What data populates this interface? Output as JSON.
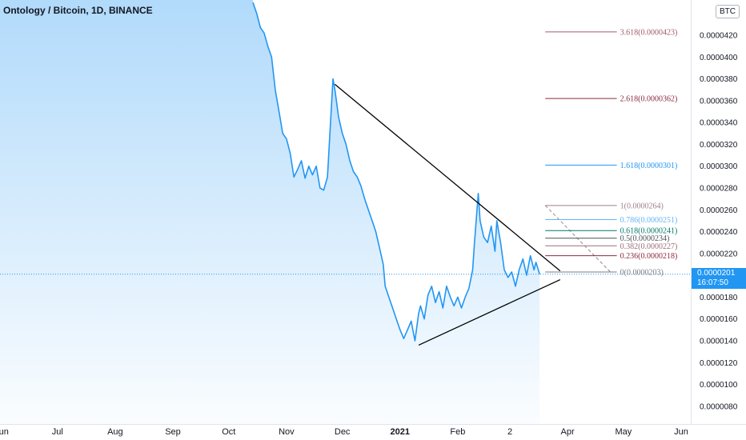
{
  "header": {
    "title": "Ontology / Bitcoin, 1D, BINANCE",
    "currency_badge": "BTC"
  },
  "current_price": {
    "value": "0.0000201",
    "countdown": "16:07:50",
    "color": "#2196f3"
  },
  "chart_data": {
    "type": "line",
    "title": "Ontology / Bitcoin, 1D, BINANCE",
    "x_tick_labels": [
      "Jun",
      "Jul",
      "Aug",
      "Sep",
      "Oct",
      "Nov",
      "Dec",
      "2021",
      "Feb",
      "2",
      "Apr",
      "May",
      "Jun"
    ],
    "y_tick_labels": [
      "0.0000420",
      "0.0000400",
      "0.0000380",
      "0.0000360",
      "0.0000340",
      "0.0000320",
      "0.0000300",
      "0.0000280",
      "0.0000260",
      "0.0000240",
      "0.0000220",
      "0.0000200",
      "0.0000180",
      "0.0000160",
      "0.0000140",
      "0.0000120",
      "0.0000100",
      "0.0000080"
    ],
    "y_ticks": [
      4.2e-05,
      4e-05,
      3.8e-05,
      3.6e-05,
      3.4e-05,
      3.2e-05,
      3e-05,
      2.8e-05,
      2.6e-05,
      2.4e-05,
      2.2e-05,
      2e-05,
      1.8e-05,
      1.6e-05,
      1.4e-05,
      1.2e-05,
      1e-05,
      8e-06
    ],
    "ylim": [
      7.4e-06,
      4.42e-05
    ],
    "x_day_range": [
      0,
      385
    ],
    "x_tick_days": [
      0,
      30,
      61,
      92,
      122,
      153,
      183,
      214,
      245,
      273,
      304,
      334,
      365
    ],
    "series": [
      {
        "color": "#2196f3",
        "fill": true,
        "points": [
          [
            135,
            4.5e-05
          ],
          [
            137,
            4.4e-05
          ],
          [
            139,
            4.27e-05
          ],
          [
            141,
            4.22e-05
          ],
          [
            143,
            4.1e-05
          ],
          [
            145,
            4e-05
          ],
          [
            147,
            3.7e-05
          ],
          [
            149,
            3.5e-05
          ],
          [
            151,
            3.3e-05
          ],
          [
            153,
            3.25e-05
          ],
          [
            155,
            3.12e-05
          ],
          [
            157,
            2.9e-05
          ],
          [
            159,
            2.97e-05
          ],
          [
            161,
            3.05e-05
          ],
          [
            163,
            2.89e-05
          ],
          [
            165,
            3e-05
          ],
          [
            167,
            2.92e-05
          ],
          [
            169,
            3e-05
          ],
          [
            171,
            2.8e-05
          ],
          [
            173,
            2.78e-05
          ],
          [
            175,
            2.9e-05
          ],
          [
            176,
            3.2e-05
          ],
          [
            178,
            3.8e-05
          ],
          [
            179,
            3.7e-05
          ],
          [
            181,
            3.45e-05
          ],
          [
            183,
            3.3e-05
          ],
          [
            185,
            3.2e-05
          ],
          [
            187,
            3.05e-05
          ],
          [
            189,
            2.95e-05
          ],
          [
            191,
            2.9e-05
          ],
          [
            193,
            2.82e-05
          ],
          [
            195,
            2.7e-05
          ],
          [
            197,
            2.6e-05
          ],
          [
            199,
            2.5e-05
          ],
          [
            201,
            2.4e-05
          ],
          [
            203,
            2.25e-05
          ],
          [
            205,
            2.1e-05
          ],
          [
            206,
            1.9e-05
          ],
          [
            208,
            1.8e-05
          ],
          [
            210,
            1.7e-05
          ],
          [
            212,
            1.6e-05
          ],
          [
            214,
            1.5e-05
          ],
          [
            216,
            1.42e-05
          ],
          [
            218,
            1.5e-05
          ],
          [
            220,
            1.58e-05
          ],
          [
            222,
            1.4e-05
          ],
          [
            224,
            1.65e-05
          ],
          [
            225,
            1.72e-05
          ],
          [
            227,
            1.6e-05
          ],
          [
            229,
            1.82e-05
          ],
          [
            231,
            1.9e-05
          ],
          [
            233,
            1.75e-05
          ],
          [
            235,
            1.85e-05
          ],
          [
            237,
            1.7e-05
          ],
          [
            239,
            1.9e-05
          ],
          [
            241,
            1.8e-05
          ],
          [
            243,
            1.72e-05
          ],
          [
            245,
            1.8e-05
          ],
          [
            247,
            1.7e-05
          ],
          [
            249,
            1.8e-05
          ],
          [
            251,
            1.88e-05
          ],
          [
            253,
            2.05e-05
          ],
          [
            254,
            2.3e-05
          ],
          [
            256,
            2.75e-05
          ],
          [
            257,
            2.5e-05
          ],
          [
            259,
            2.35e-05
          ],
          [
            261,
            2.3e-05
          ],
          [
            263,
            2.45e-05
          ],
          [
            265,
            2.22e-05
          ],
          [
            266,
            2.5e-05
          ],
          [
            268,
            2.3e-05
          ],
          [
            270,
            2.05e-05
          ],
          [
            272,
            1.98e-05
          ],
          [
            274,
            2.03e-05
          ],
          [
            276,
            1.9e-05
          ],
          [
            278,
            2.05e-05
          ],
          [
            280,
            2.15e-05
          ],
          [
            282,
            2e-05
          ],
          [
            284,
            2.18e-05
          ],
          [
            286,
            2.05e-05
          ],
          [
            287,
            2.12e-05
          ],
          [
            289,
            2.01e-05
          ]
        ]
      }
    ],
    "trendlines": [
      {
        "from": [
          179,
          3.75e-05
        ],
        "to": [
          300,
          2.04e-05
        ]
      },
      {
        "from": [
          224,
          1.36e-05
        ],
        "to": [
          300,
          1.96e-05
        ]
      }
    ],
    "fibonacci": {
      "levels": [
        {
          "ratio": "3.618",
          "value": 4.23e-05,
          "label": "3.618(0.0000423)",
          "color": "#a05a66"
        },
        {
          "ratio": "2.618",
          "value": 3.62e-05,
          "label": "2.618(0.0000362)",
          "color": "#8b2b3b"
        },
        {
          "ratio": "1.618",
          "value": 3.01e-05,
          "label": "1.618(0.0000301)",
          "color": "#2196f3"
        },
        {
          "ratio": "1",
          "value": 2.64e-05,
          "label": "1(0.0000264)",
          "color": "#9e7f88"
        },
        {
          "ratio": "0.786",
          "value": 2.51e-05,
          "label": "0.786(0.0000251)",
          "color": "#64b5f6"
        },
        {
          "ratio": "0.618",
          "value": 2.41e-05,
          "label": "0.618(0.0000241)",
          "color": "#00796b"
        },
        {
          "ratio": "0.5",
          "value": 2.34e-05,
          "label": "0.5(0.0000234)",
          "color": "#4c525e"
        },
        {
          "ratio": "0.382",
          "value": 2.27e-05,
          "label": "0.382(0.0000227)",
          "color": "#9e6d74"
        },
        {
          "ratio": "0.236",
          "value": 2.18e-05,
          "label": "0.236(0.0000218)",
          "color": "#8b2b3b"
        },
        {
          "ratio": "0",
          "value": 2.03e-05,
          "label": "0(0.0000203)",
          "color": "#787b86"
        }
      ],
      "anchor_from": [
        292,
        2.64e-05
      ],
      "anchor_to": [
        327,
        2.03e-05
      ]
    },
    "last_price_line": 2.01e-05,
    "grid": false,
    "legend": "none"
  }
}
